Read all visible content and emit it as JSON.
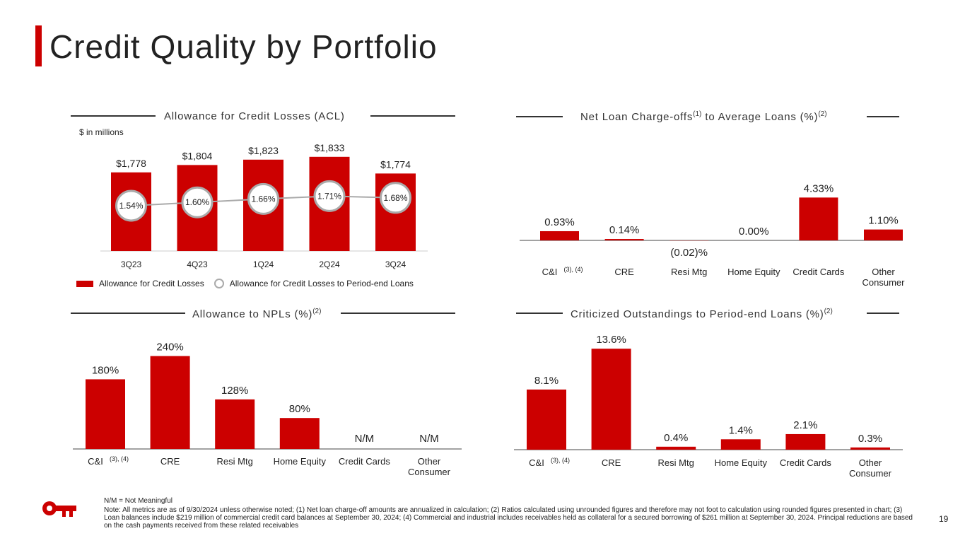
{
  "page": {
    "title": "Credit Quality by Portfolio",
    "page_number": "19",
    "nm_note": "N/M = Not Meaningful",
    "note": "Note: All metrics are as of 9/30/2024 unless otherwise noted; (1) Net loan charge-off amounts are annualized in calculation; (2) Ratios calculated using unrounded figures and therefore may not foot to calculation using rounded figures presented in chart; (3) Loan balances include $219 million of commercial credit card balances at September 30, 2024; (4) Commercial and industrial includes receivables held as collateral for a secured borrowing of $261 million at September 30, 2024. Principal reductions are based on the cash payments received from these related receivables",
    "colors": {
      "accent": "#cc0000",
      "line": "#aaaaaa",
      "text": "#222222"
    }
  },
  "chart_data": [
    {
      "id": "acl",
      "type": "bar",
      "title": "Allowance for Credit Losses (ACL)",
      "units_label": "$ in millions",
      "categories": [
        "3Q23",
        "4Q23",
        "1Q24",
        "2Q24",
        "3Q24"
      ],
      "series": [
        {
          "name": "Allowance for Credit Losses",
          "values": [
            1778,
            1804,
            1823,
            1833,
            1774
          ],
          "labels": [
            "$1,778",
            "$1,804",
            "$1,823",
            "$1,833",
            "$1,774"
          ]
        },
        {
          "name": "Allowance for Credit Losses to Period-end Loans",
          "type": "line",
          "values": [
            1.54,
            1.6,
            1.66,
            1.71,
            1.68
          ],
          "labels": [
            "1.54%",
            "1.60%",
            "1.66%",
            "1.71%",
            "1.68%"
          ]
        }
      ],
      "legend": [
        "Allowance for Credit Losses",
        "Allowance for Credit Losses to Period-end Loans"
      ],
      "legend_position": "bottom"
    },
    {
      "id": "nco",
      "type": "bar",
      "title": "Net Loan Charge-offs",
      "title_sup1": "(1)",
      "title_mid": " to Average Loans (%)",
      "title_sup2": "(2)",
      "categories": [
        "C&I",
        "CRE",
        "Resi Mtg",
        "Home Equity",
        "Credit Cards",
        "Other Consumer"
      ],
      "category_sup": [
        "(3), (4)",
        "",
        "",
        "",
        "",
        ""
      ],
      "values": [
        0.93,
        0.14,
        -0.02,
        0.0,
        4.33,
        1.1
      ],
      "labels": [
        "0.93%",
        "0.14%",
        "(0.02)%",
        "0.00%",
        "4.33%",
        "1.10%"
      ]
    },
    {
      "id": "npl",
      "type": "bar",
      "title": "Allowance to NPLs (%)",
      "title_sup": "(2)",
      "categories": [
        "C&I",
        "CRE",
        "Resi Mtg",
        "Home Equity",
        "Credit Cards",
        "Other Consumer"
      ],
      "category_sup": [
        "(3), (4)",
        "",
        "",
        "",
        "",
        ""
      ],
      "values": [
        180,
        240,
        128,
        80,
        null,
        null
      ],
      "labels": [
        "180%",
        "240%",
        "128%",
        "80%",
        "N/M",
        "N/M"
      ]
    },
    {
      "id": "crit",
      "type": "bar",
      "title": "Criticized Outstandings to Period-end Loans (%)",
      "title_sup": "(2)",
      "categories": [
        "C&I",
        "CRE",
        "Resi Mtg",
        "Home Equity",
        "Credit Cards",
        "Other Consumer"
      ],
      "category_sup": [
        "(3), (4)",
        "",
        "",
        "",
        "",
        ""
      ],
      "values": [
        8.1,
        13.6,
        0.4,
        1.4,
        2.1,
        0.3
      ],
      "labels": [
        "8.1%",
        "13.6%",
        "0.4%",
        "1.4%",
        "2.1%",
        "0.3%"
      ]
    }
  ]
}
